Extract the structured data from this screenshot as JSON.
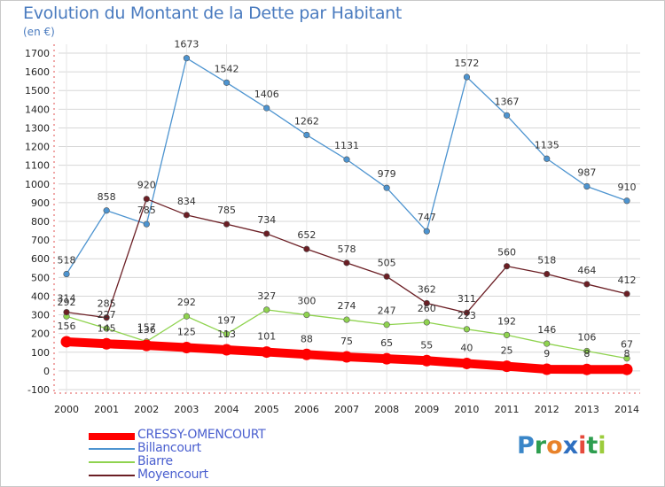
{
  "title": "Evolution du Montant de la Dette par Habitant",
  "subtitle": "(en €)",
  "brand": {
    "name": "Proxiti",
    "letters": [
      "P",
      "r",
      "o",
      "x",
      "i",
      "t",
      "i"
    ],
    "letter_colors": [
      "#3a86c8",
      "#2e9e4f",
      "#e8822a",
      "#2e6fc0",
      "#e64a3c",
      "#2e9e4f",
      "#9ccc3c"
    ]
  },
  "chart_data": {
    "type": "line",
    "title": "Evolution du Montant de la Dette par Habitant",
    "ylabel": "(en €)",
    "xlabel": "",
    "x": [
      "2000",
      "2001",
      "2002",
      "2003",
      "2004",
      "2005",
      "2006",
      "2007",
      "2008",
      "2009",
      "2010",
      "2011",
      "2012",
      "2013",
      "2014"
    ],
    "ylim": [
      -100,
      1700
    ],
    "yticks": [
      -100,
      0,
      100,
      200,
      300,
      400,
      500,
      600,
      700,
      800,
      900,
      1000,
      1100,
      1200,
      1300,
      1400,
      1500,
      1600,
      1700
    ],
    "grid": true,
    "legend_position": "bottom-left",
    "series": [
      {
        "name": "CRESSY-OMENCOURT",
        "color": "#ff0000",
        "values": [
          156,
          145,
          136,
          125,
          113,
          101,
          88,
          75,
          65,
          55,
          40,
          25,
          9,
          8,
          8
        ]
      },
      {
        "name": "Billancourt",
        "color": "#4d94d0",
        "values": [
          518,
          858,
          785,
          1673,
          1542,
          1406,
          1262,
          1131,
          979,
          747,
          1572,
          1367,
          1135,
          987,
          910
        ]
      },
      {
        "name": "Biarre",
        "color": "#8fd34f",
        "values": [
          292,
          227,
          157,
          292,
          197,
          327,
          300,
          274,
          247,
          260,
          223,
          192,
          146,
          106,
          67
        ]
      },
      {
        "name": "Moyencourt",
        "color": "#6b1e24",
        "values": [
          314,
          285,
          920,
          834,
          785,
          734,
          652,
          578,
          505,
          362,
          311,
          560,
          518,
          464,
          412
        ]
      }
    ]
  }
}
